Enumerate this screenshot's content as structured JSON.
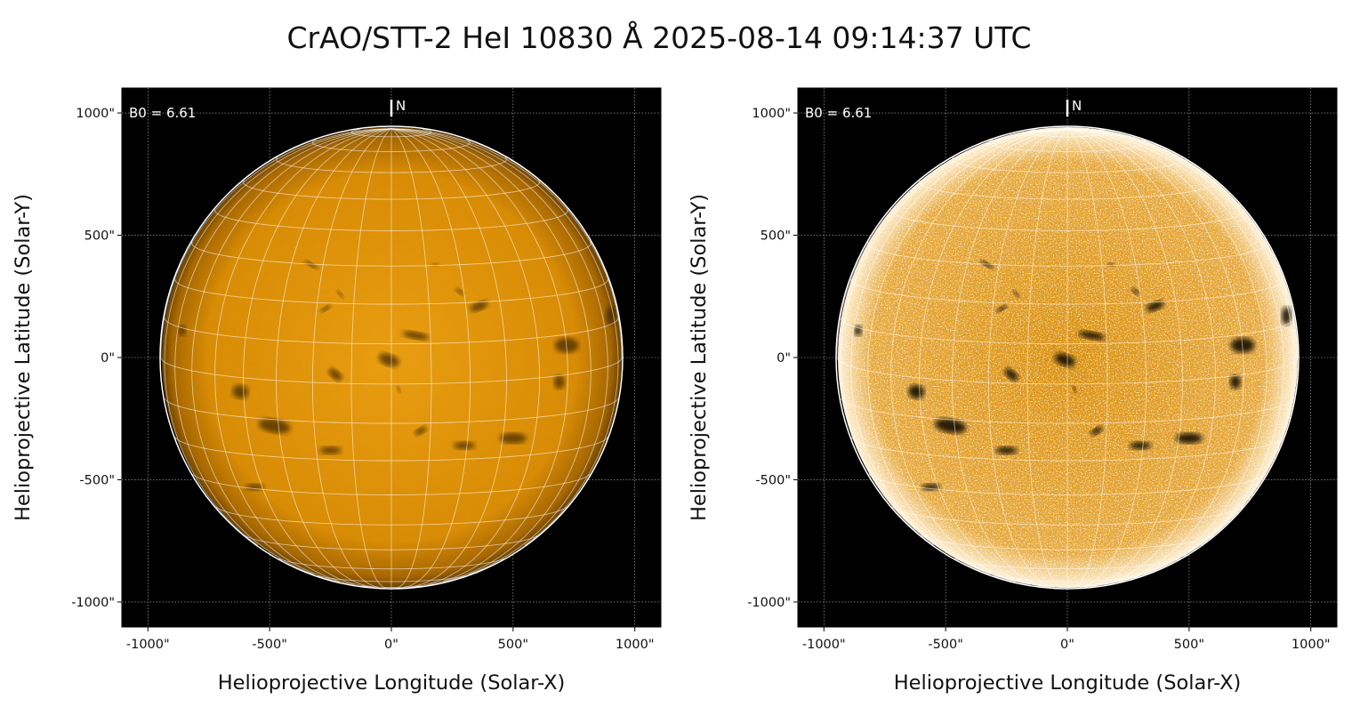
{
  "title": "CrAO/STT-2 HeI 10830 Å 2025-08-14 09:14:37 UTC",
  "colors": {
    "sun_base": "#e0950a",
    "sun_dark": "#3a2300",
    "background": "#000000",
    "limb": "#ffffff"
  },
  "chart_data": [
    {
      "type": "heatmap",
      "panel": "left",
      "description_label": "B0 = 6.61",
      "north_label": "N",
      "xlabel": "Helioprojective Longitude (Solar-X)",
      "ylabel": "Helioprojective Latitude (Solar-Y)",
      "xlim": [
        -1100,
        1100
      ],
      "ylim": [
        -1100,
        1100
      ],
      "xticks": [
        "-1000\"",
        "-500\"",
        "0\"",
        "500\"",
        "1000\""
      ],
      "yticks": [
        "1000\"",
        "500\"",
        "0\"",
        "-500\"",
        "-1000\""
      ],
      "grid": true,
      "colormap": "sdo-aia-like orange",
      "contrast": "normal"
    },
    {
      "type": "heatmap",
      "panel": "right",
      "description_label": "B0 = 6.61",
      "north_label": "N",
      "xlabel": "Helioprojective Longitude (Solar-X)",
      "ylabel": "Helioprojective Latitude (Solar-Y)",
      "xlim": [
        -1100,
        1100
      ],
      "ylim": [
        -1100,
        1100
      ],
      "xticks": [
        "-1000\"",
        "-500\"",
        "0\"",
        "500\"",
        "1000\""
      ],
      "yticks": [
        "1000\"",
        "500\"",
        "0\"",
        "-500\"",
        "-1000\""
      ],
      "grid": true,
      "colormap": "sdo-aia-like orange",
      "contrast": "enhanced"
    }
  ]
}
